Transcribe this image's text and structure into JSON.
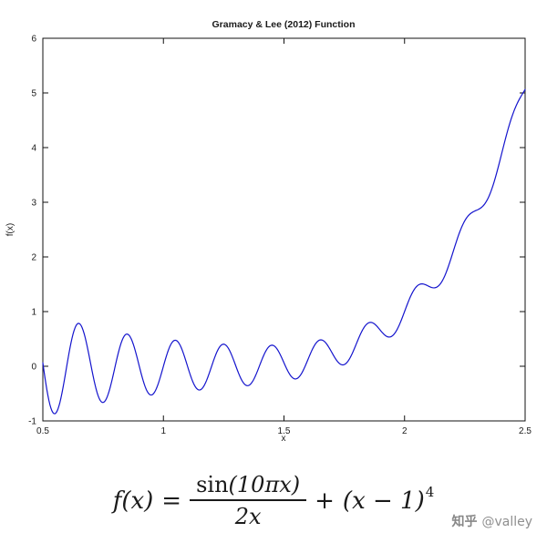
{
  "chart_data": {
    "type": "line",
    "title": "Gramacy & Lee (2012) Function",
    "xlabel": "x",
    "ylabel": "f(x)",
    "xlim": [
      0.5,
      2.5
    ],
    "ylim": [
      -1,
      6
    ],
    "x_ticks": [
      0.5,
      1,
      1.5,
      2,
      2.5
    ],
    "x_tick_labels": [
      "0.5",
      "1",
      "1.5",
      "2",
      "2.5"
    ],
    "y_ticks": [
      -1,
      0,
      1,
      2,
      3,
      4,
      5,
      6
    ],
    "y_tick_labels": [
      "-1",
      "0",
      "1",
      "2",
      "3",
      "4",
      "5",
      "6"
    ],
    "grid": false,
    "legend": "none",
    "line_color": "#1414cd",
    "axis_color": "#111111",
    "generator": {
      "description": "f(x) = sin(10*pi*x)/(2*x) + (x-1)^4",
      "sin_pi_multiple": 10,
      "denominator_coefficient": 2,
      "shift": 1,
      "power": 4,
      "samples": 480
    },
    "series": [
      {
        "name": "f(x) = sin(10πx)/(2x) + (x−1)^4",
        "x": [
          0.5,
          0.55,
          0.6,
          0.65,
          0.7,
          0.75,
          0.8,
          0.85,
          0.9,
          0.95,
          1.0,
          1.05,
          1.1,
          1.15,
          1.2,
          1.25,
          1.3,
          1.35,
          1.4,
          1.45,
          1.5,
          1.55,
          1.6,
          1.65,
          1.7,
          1.75,
          1.8,
          1.85,
          1.9,
          1.95,
          2.0,
          2.05,
          2.1,
          2.15,
          2.2,
          2.25,
          2.3,
          2.35,
          2.4,
          2.45,
          2.5
        ],
        "y": [
          0.0625,
          -0.8681,
          0.0256,
          0.7842,
          0.0081,
          -0.6628,
          0.0016,
          0.5887,
          0.0001,
          -0.5263,
          0.0,
          0.4762,
          0.0001,
          -0.4343,
          0.0016,
          0.4039,
          0.0081,
          -0.3554,
          0.0256,
          0.3858,
          0.0625,
          -0.2311,
          0.1296,
          0.4815,
          0.2401,
          0.0307,
          0.4096,
          0.7923,
          0.6561,
          0.5581,
          1.0,
          1.4594,
          1.4641,
          1.5164,
          2.0736,
          2.6636,
          2.8561,
          3.1087,
          3.8416,
          4.6246,
          5.0625
        ]
      }
    ]
  },
  "formula": {
    "lhs": "f(x)",
    "equals": "=",
    "num_fn": "sin",
    "num_arg": "(10πx)",
    "den": "2x",
    "plus": "+",
    "term": "(x − 1)",
    "exponent": "4"
  },
  "watermark": {
    "brand": "知乎",
    "user": "@valley"
  }
}
